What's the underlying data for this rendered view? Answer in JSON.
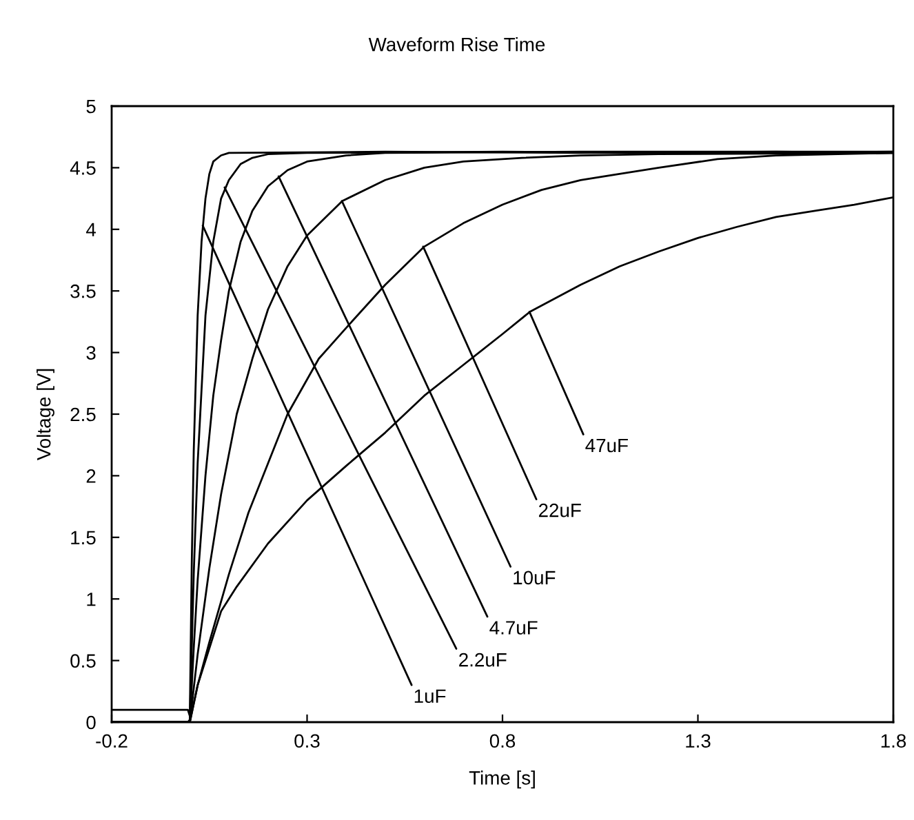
{
  "chart_data": {
    "type": "line",
    "title": "Waveform Rise Time",
    "xlabel": "Time [s]",
    "ylabel": "Voltage [V]",
    "xlim": [
      -0.2,
      1.8
    ],
    "xticks": [
      -0.2,
      0.3,
      0.8,
      1.3,
      1.8
    ],
    "ylim": [
      0,
      5
    ],
    "yticks": [
      0,
      0.5,
      1,
      1.5,
      2,
      2.5,
      3,
      3.5,
      4,
      4.5,
      5
    ],
    "grid": false,
    "marker": "none",
    "line_style": "solid",
    "series": [
      {
        "color": "#000000",
        "x": [
          -0.2,
          -0.1,
          -0.005,
          0,
          0.005,
          0.01,
          0.02,
          0.03,
          0.04,
          0.05,
          0.06,
          0.08,
          0.1,
          0.5,
          1.0,
          1.5,
          1.8
        ],
        "values": [
          0.1,
          0.1,
          0.1,
          0.05,
          1.3,
          2.2,
          3.3,
          3.9,
          4.25,
          4.45,
          4.55,
          4.6,
          4.62,
          4.63,
          4.62,
          4.63,
          4.62
        ]
      },
      {
        "color": "#000000",
        "x": [
          -0.2,
          -0.005,
          0,
          0.01,
          0.02,
          0.04,
          0.06,
          0.08,
          0.1,
          0.13,
          0.16,
          0.2,
          0.3,
          0.8,
          1.3,
          1.8
        ],
        "values": [
          0,
          0,
          0.02,
          1.2,
          2.1,
          3.3,
          3.9,
          4.25,
          4.4,
          4.53,
          4.58,
          4.61,
          4.62,
          4.63,
          4.62,
          4.63
        ]
      },
      {
        "color": "#000000",
        "x": [
          -0.2,
          0,
          0.01,
          0.02,
          0.04,
          0.06,
          0.08,
          0.1,
          0.13,
          0.16,
          0.2,
          0.25,
          0.3,
          0.4,
          0.5,
          1.0,
          1.8
        ],
        "values": [
          0,
          0,
          0.6,
          1.15,
          2.0,
          2.65,
          3.1,
          3.5,
          3.9,
          4.15,
          4.35,
          4.48,
          4.55,
          4.6,
          4.62,
          4.63,
          4.63
        ]
      },
      {
        "color": "#000000",
        "x": [
          -0.2,
          0,
          0.02,
          0.05,
          0.08,
          0.12,
          0.16,
          0.2,
          0.25,
          0.3,
          0.39,
          0.5,
          0.6,
          0.7,
          0.85,
          1.0,
          1.2,
          1.8
        ],
        "values": [
          0,
          0,
          0.55,
          1.25,
          1.85,
          2.5,
          2.95,
          3.35,
          3.7,
          3.95,
          4.23,
          4.4,
          4.5,
          4.55,
          4.58,
          4.6,
          4.61,
          4.62
        ]
      },
      {
        "color": "#000000",
        "x": [
          -0.2,
          0,
          0.02,
          0.05,
          0.1,
          0.15,
          0.2,
          0.25,
          0.33,
          0.4,
          0.5,
          0.6,
          0.7,
          0.8,
          0.9,
          1.0,
          1.2,
          1.35,
          1.5,
          1.8
        ],
        "values": [
          0,
          0,
          0.3,
          0.65,
          1.2,
          1.7,
          2.1,
          2.5,
          2.95,
          3.2,
          3.55,
          3.86,
          4.05,
          4.2,
          4.32,
          4.4,
          4.5,
          4.57,
          4.6,
          4.62
        ]
      },
      {
        "color": "#000000",
        "x": [
          -0.2,
          0,
          0.02,
          0.05,
          0.08,
          0.12,
          0.2,
          0.3,
          0.4,
          0.5,
          0.6,
          0.7,
          0.8,
          0.87,
          1.0,
          1.1,
          1.2,
          1.3,
          1.4,
          1.5,
          1.6,
          1.7,
          1.8
        ],
        "values": [
          0,
          0,
          0.3,
          0.6,
          0.9,
          1.1,
          1.45,
          1.8,
          2.08,
          2.35,
          2.65,
          2.9,
          3.15,
          3.33,
          3.55,
          3.7,
          3.82,
          3.93,
          4.02,
          4.1,
          4.15,
          4.2,
          4.26
        ]
      }
    ],
    "annotations": [
      {
        "text": "1uF",
        "x": 0.033,
        "y": 4.03
      },
      {
        "text": "2.2uF",
        "x": 0.089,
        "y": 4.34
      },
      {
        "text": "4.7uF",
        "x": 0.227,
        "y": 4.43
      },
      {
        "text": "10uF",
        "x": 0.389,
        "y": 4.23
      },
      {
        "text": "22uF",
        "x": 0.597,
        "y": 3.86
      },
      {
        "text": "47uF",
        "x": 0.869,
        "y": 3.33
      }
    ]
  }
}
